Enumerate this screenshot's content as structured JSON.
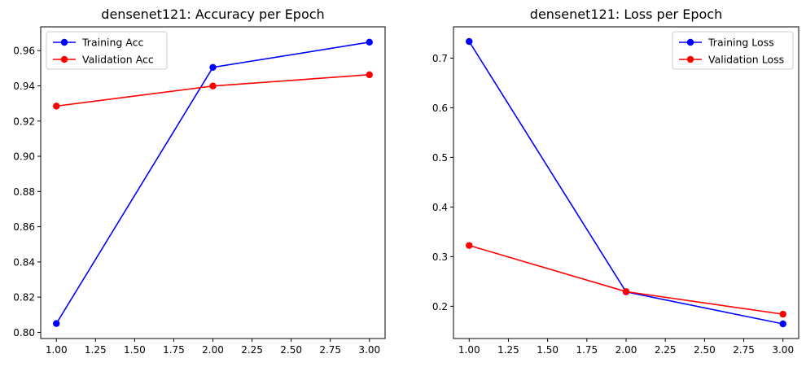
{
  "chart_data": [
    {
      "type": "line",
      "title": "densenet121: Accuracy per Epoch",
      "xlabel": "",
      "ylabel": "",
      "x": [
        1,
        2,
        3
      ],
      "xlim": [
        0.9,
        3.1
      ],
      "ylim": [
        0.7965,
        0.9735
      ],
      "xticks": [
        "1.00",
        "1.25",
        "1.50",
        "1.75",
        "2.00",
        "2.25",
        "2.50",
        "2.75",
        "3.00"
      ],
      "yticks": [
        "0.80",
        "0.82",
        "0.84",
        "0.86",
        "0.88",
        "0.90",
        "0.92",
        "0.94",
        "0.96"
      ],
      "legend": "upper-left",
      "grid": false,
      "series": [
        {
          "name": "Training Acc",
          "color": "#0000ff",
          "values": [
            0.805,
            0.9505,
            0.9648
          ]
        },
        {
          "name": "Validation Acc",
          "color": "#ff0000",
          "values": [
            0.9285,
            0.9399,
            0.9463
          ]
        }
      ]
    },
    {
      "type": "line",
      "title": "densenet121: Loss per Epoch",
      "xlabel": "",
      "ylabel": "",
      "x": [
        1,
        2,
        3
      ],
      "xlim": [
        0.9,
        3.1
      ],
      "ylim": [
        0.135,
        0.763
      ],
      "xticks": [
        "1.00",
        "1.25",
        "1.50",
        "1.75",
        "2.00",
        "2.25",
        "2.50",
        "2.75",
        "3.00"
      ],
      "yticks": [
        "0.2",
        "0.3",
        "0.4",
        "0.5",
        "0.6",
        "0.7"
      ],
      "legend": "upper-right",
      "grid": false,
      "series": [
        {
          "name": "Training Loss",
          "color": "#0000ff",
          "values": [
            0.7335,
            0.229,
            0.1645
          ]
        },
        {
          "name": "Validation Loss",
          "color": "#ff0000",
          "values": [
            0.3225,
            0.2295,
            0.184
          ]
        }
      ]
    }
  ]
}
